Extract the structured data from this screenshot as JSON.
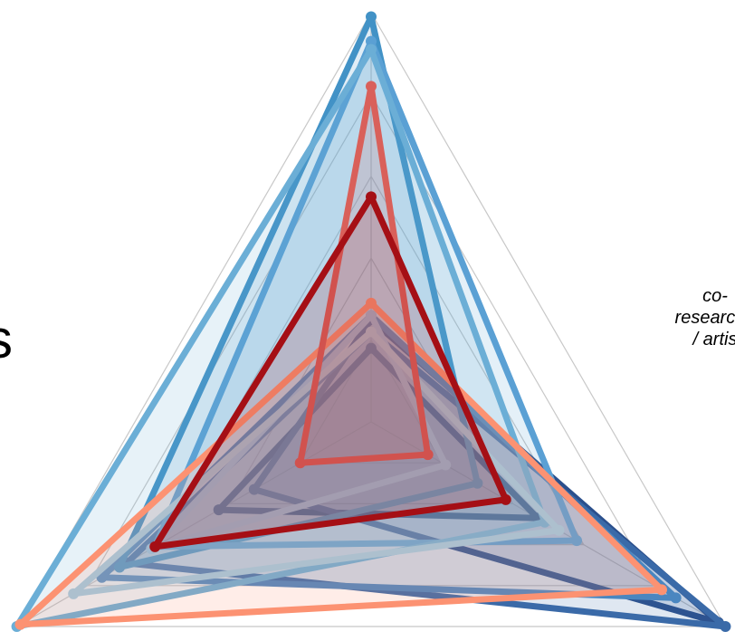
{
  "chart_data": {
    "type": "radar",
    "axes": [
      {
        "label": ""
      },
      {
        "label": "co-\nresearche\n/ artis"
      },
      {
        "label": "s"
      }
    ],
    "range": [
      0,
      1
    ],
    "grid": true,
    "grid_levels": 5,
    "series": [
      {
        "color": "#08306b",
        "values": [
          0.18,
          0.47,
          0.43
        ]
      },
      {
        "color": "#2b4f8c",
        "values": [
          0.25,
          0.98,
          0.33
        ]
      },
      {
        "color": "#3a6aa8",
        "values": [
          0.22,
          1.0,
          0.69
        ]
      },
      {
        "color": "#4a86c0",
        "values": [
          0.26,
          0.86,
          0.76
        ]
      },
      {
        "color": "#4292c6",
        "values": [
          0.99,
          0.3,
          0.71
        ]
      },
      {
        "color": "#5aa0d4",
        "values": [
          0.93,
          0.58,
          0.61
        ]
      },
      {
        "color": "#6baed6",
        "values": [
          0.91,
          0.49,
          1.0
        ]
      },
      {
        "color": "#8fc0e0",
        "values": [
          0.26,
          0.21,
          0.62
        ]
      },
      {
        "color": "#9ecae1",
        "values": [
          0.22,
          0.53,
          0.84
        ]
      },
      {
        "color": "#fc9272",
        "values": [
          0.29,
          0.82,
          0.99
        ]
      },
      {
        "color": "#d9605a",
        "values": [
          0.82,
          0.16,
          0.2
        ]
      },
      {
        "color": "#a50f15",
        "values": [
          0.55,
          0.38,
          0.61
        ]
      }
    ]
  }
}
